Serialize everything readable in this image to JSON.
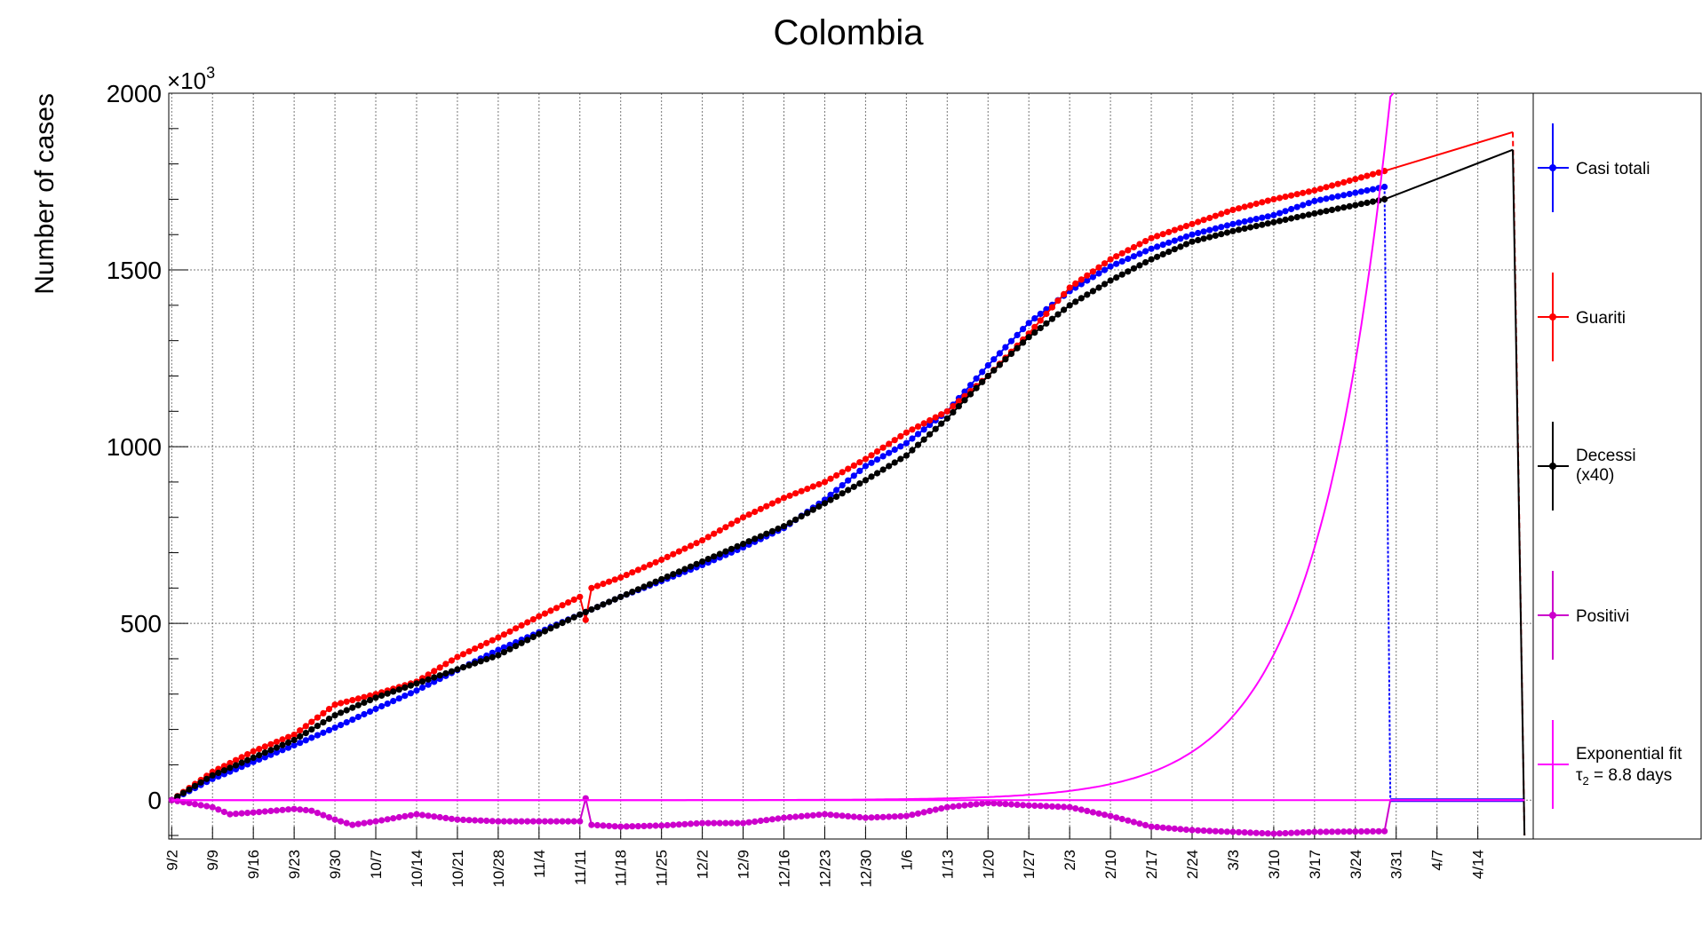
{
  "chart_data": {
    "type": "line",
    "title": "Colombia",
    "ylabel": "Number of cases",
    "y_multiplier_base": "×10",
    "y_multiplier_exp": "3",
    "ylim": [
      -110,
      2000
    ],
    "yticks": [
      0,
      500,
      1000,
      1500,
      2000
    ],
    "xlim": [
      -0.5,
      233.5
    ],
    "x_tick_labels": [
      "9/2",
      "9/9",
      "9/16",
      "9/23",
      "9/30",
      "10/7",
      "10/14",
      "10/21",
      "10/28",
      "11/4",
      "11/11",
      "11/18",
      "11/25",
      "12/2",
      "12/9",
      "12/16",
      "12/23",
      "12/30",
      "1/6",
      "1/13",
      "1/20",
      "1/27",
      "2/3",
      "2/10",
      "2/17",
      "2/24",
      "3/3",
      "3/10",
      "3/17",
      "3/24",
      "3/31",
      "4/7",
      "4/14"
    ],
    "grid": true,
    "legend_position": "right",
    "colors": {
      "casi_totali": "#0000ff",
      "guariti": "#ff0000",
      "decessi": "#000000",
      "positivi": "#cc00cc",
      "fit": "#ff00ff"
    },
    "series": [
      {
        "name": "Casi totali",
        "color_key": "casi_totali",
        "points": [
          [
            0,
            0
          ],
          [
            7,
            60
          ],
          [
            14,
            108
          ],
          [
            21,
            155
          ],
          [
            28,
            205
          ],
          [
            35,
            258
          ],
          [
            42,
            310
          ],
          [
            49,
            368
          ],
          [
            56,
            425
          ],
          [
            63,
            475
          ],
          [
            70,
            525
          ],
          [
            77,
            575
          ],
          [
            84,
            620
          ],
          [
            91,
            665
          ],
          [
            98,
            715
          ],
          [
            105,
            770
          ],
          [
            112,
            850
          ],
          [
            119,
            945
          ],
          [
            126,
            1010
          ],
          [
            133,
            1100
          ],
          [
            140,
            1230
          ],
          [
            147,
            1350
          ],
          [
            154,
            1440
          ],
          [
            161,
            1510
          ],
          [
            168,
            1560
          ],
          [
            175,
            1600
          ],
          [
            182,
            1630
          ],
          [
            189,
            1655
          ],
          [
            196,
            1695
          ],
          [
            208,
            1735
          ]
        ],
        "after_drop": 0,
        "drop_at": 209,
        "drop_end": 232
      },
      {
        "name": "Guariti",
        "color_key": "guariti",
        "points": [
          [
            0,
            0
          ],
          [
            7,
            80
          ],
          [
            14,
            138
          ],
          [
            21,
            185
          ],
          [
            28,
            270
          ],
          [
            35,
            300
          ],
          [
            42,
            335
          ],
          [
            49,
            405
          ],
          [
            56,
            460
          ],
          [
            63,
            520
          ],
          [
            70,
            575
          ],
          [
            71,
            510
          ],
          [
            72,
            600
          ],
          [
            77,
            630
          ],
          [
            84,
            680
          ],
          [
            91,
            735
          ],
          [
            98,
            800
          ],
          [
            105,
            855
          ],
          [
            112,
            900
          ],
          [
            119,
            965
          ],
          [
            126,
            1040
          ],
          [
            133,
            1100
          ],
          [
            140,
            1200
          ],
          [
            147,
            1320
          ],
          [
            154,
            1450
          ],
          [
            161,
            1530
          ],
          [
            168,
            1590
          ],
          [
            175,
            1630
          ],
          [
            182,
            1670
          ],
          [
            189,
            1700
          ],
          [
            196,
            1725
          ],
          [
            208,
            1780
          ],
          [
            230,
            1890
          ]
        ],
        "drop_at": 232
      },
      {
        "name": "Decessi",
        "name_line2": "(x40)",
        "color_key": "decessi",
        "points": [
          [
            0,
            0
          ],
          [
            7,
            70
          ],
          [
            14,
            120
          ],
          [
            21,
            170
          ],
          [
            28,
            240
          ],
          [
            35,
            290
          ],
          [
            42,
            330
          ],
          [
            49,
            370
          ],
          [
            56,
            410
          ],
          [
            63,
            470
          ],
          [
            70,
            525
          ],
          [
            77,
            575
          ],
          [
            84,
            625
          ],
          [
            91,
            675
          ],
          [
            98,
            725
          ],
          [
            105,
            775
          ],
          [
            112,
            840
          ],
          [
            119,
            905
          ],
          [
            126,
            975
          ],
          [
            133,
            1080
          ],
          [
            140,
            1200
          ],
          [
            147,
            1310
          ],
          [
            154,
            1400
          ],
          [
            161,
            1470
          ],
          [
            168,
            1530
          ],
          [
            175,
            1580
          ],
          [
            182,
            1610
          ],
          [
            189,
            1635
          ],
          [
            196,
            1660
          ],
          [
            208,
            1700
          ],
          [
            230,
            1840
          ]
        ],
        "drop_at": 232
      },
      {
        "name": "Positivi",
        "color_key": "positivi",
        "points": [
          [
            0,
            0
          ],
          [
            7,
            -20
          ],
          [
            10,
            -40
          ],
          [
            14,
            -35
          ],
          [
            21,
            -25
          ],
          [
            24,
            -30
          ],
          [
            28,
            -55
          ],
          [
            31,
            -70
          ],
          [
            35,
            -60
          ],
          [
            42,
            -40
          ],
          [
            49,
            -55
          ],
          [
            56,
            -60
          ],
          [
            63,
            -60
          ],
          [
            70,
            -60
          ],
          [
            71,
            5
          ],
          [
            72,
            -70
          ],
          [
            77,
            -75
          ],
          [
            84,
            -72
          ],
          [
            91,
            -65
          ],
          [
            98,
            -65
          ],
          [
            105,
            -50
          ],
          [
            112,
            -40
          ],
          [
            119,
            -50
          ],
          [
            126,
            -45
          ],
          [
            133,
            -20
          ],
          [
            140,
            -8
          ],
          [
            147,
            -15
          ],
          [
            154,
            -20
          ],
          [
            161,
            -45
          ],
          [
            168,
            -75
          ],
          [
            175,
            -85
          ],
          [
            182,
            -90
          ],
          [
            189,
            -95
          ],
          [
            196,
            -90
          ],
          [
            208,
            -88
          ],
          [
            209,
            0
          ],
          [
            232,
            0
          ]
        ]
      },
      {
        "name": "Exponential fit",
        "name_line2_pre": "τ",
        "name_line2_sub": "2",
        "name_line2_post": " = 8.8 days",
        "color_key": "fit",
        "function": "exponential",
        "tau2_days": 8.8,
        "value_at_day_207": 1700,
        "x_range": [
          0,
          210
        ]
      }
    ]
  }
}
